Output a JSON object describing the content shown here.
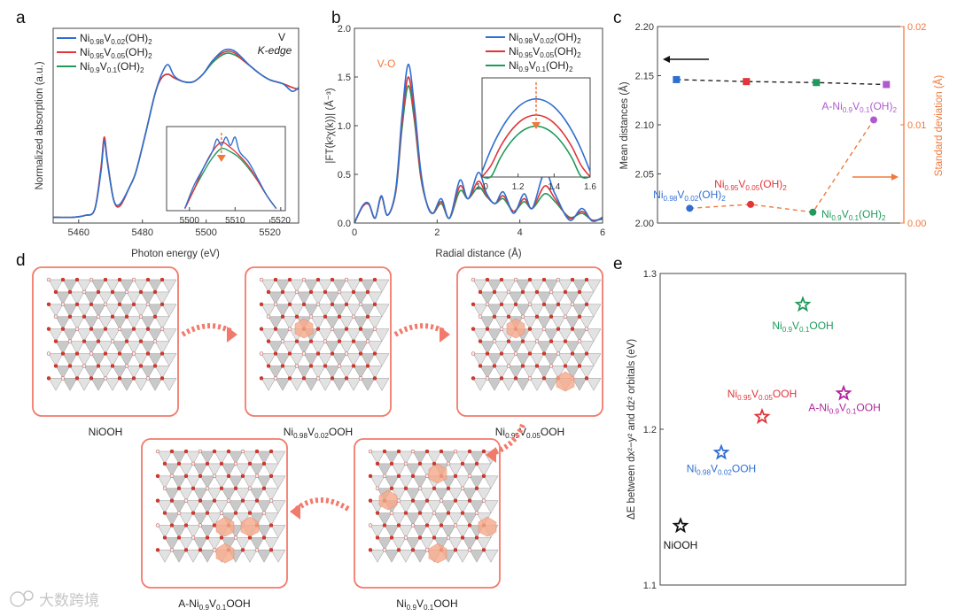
{
  "panel_labels": {
    "a": "a",
    "b": "b",
    "c": "c",
    "d": "d",
    "e": "e"
  },
  "colors": {
    "blue": "#2f6fd0",
    "red": "#e0353a",
    "green": "#1e9a5c",
    "purple": "#b05ad0",
    "magenta": "#b0259e",
    "orange": "#f0793a",
    "black": "#111111",
    "salmon": "#f27a6b"
  },
  "chart_data": [
    {
      "type": "line",
      "panel": "a",
      "xlabel": "Photon energy (eV)",
      "ylabel": "Normalized absorption (a.u.)",
      "xlim": [
        5452,
        5529
      ],
      "ylim": [
        -0.02,
        1.0
      ],
      "xticks": [
        5460,
        5480,
        5500,
        5520
      ],
      "annotation": {
        "line1": "V",
        "line2": "K-edge"
      },
      "series": [
        {
          "name": "Ni0.98V0.02(OH)2",
          "color": "#2f6fd0",
          "points": [
            [
              5452,
              0.01
            ],
            [
              5458,
              0.01
            ],
            [
              5462,
              0.02
            ],
            [
              5465,
              0.05
            ],
            [
              5467,
              0.25
            ],
            [
              5468,
              0.41
            ],
            [
              5469,
              0.3
            ],
            [
              5471,
              0.1
            ],
            [
              5473,
              0.08
            ],
            [
              5476,
              0.17
            ],
            [
              5478,
              0.25
            ],
            [
              5481,
              0.45
            ],
            [
              5484,
              0.66
            ],
            [
              5486,
              0.76
            ],
            [
              5488,
              0.81
            ],
            [
              5490,
              0.75
            ],
            [
              5493,
              0.72
            ],
            [
              5496,
              0.72
            ],
            [
              5499,
              0.76
            ],
            [
              5502,
              0.83
            ],
            [
              5505,
              0.88
            ],
            [
              5507,
              0.89
            ],
            [
              5509,
              0.88
            ],
            [
              5511,
              0.85
            ],
            [
              5514,
              0.8
            ],
            [
              5517,
              0.76
            ],
            [
              5520,
              0.73
            ],
            [
              5524,
              0.71
            ],
            [
              5527,
              0.67
            ],
            [
              5529,
              0.69
            ]
          ]
        },
        {
          "name": "Ni0.95V0.05(OH)2",
          "color": "#e0353a",
          "points": [
            [
              5452,
              0.01
            ],
            [
              5458,
              0.01
            ],
            [
              5462,
              0.02
            ],
            [
              5465,
              0.05
            ],
            [
              5467,
              0.27
            ],
            [
              5468,
              0.43
            ],
            [
              5469,
              0.31
            ],
            [
              5471,
              0.1
            ],
            [
              5473,
              0.07
            ],
            [
              5476,
              0.17
            ],
            [
              5478,
              0.25
            ],
            [
              5481,
              0.45
            ],
            [
              5484,
              0.66
            ],
            [
              5486,
              0.74
            ],
            [
              5488,
              0.76
            ],
            [
              5490,
              0.74
            ],
            [
              5493,
              0.72
            ],
            [
              5496,
              0.72
            ],
            [
              5499,
              0.76
            ],
            [
              5502,
              0.83
            ],
            [
              5505,
              0.87
            ],
            [
              5507,
              0.88
            ],
            [
              5509,
              0.87
            ],
            [
              5511,
              0.84
            ],
            [
              5514,
              0.8
            ],
            [
              5517,
              0.76
            ],
            [
              5520,
              0.73
            ],
            [
              5524,
              0.71
            ],
            [
              5527,
              0.69
            ],
            [
              5529,
              0.68
            ]
          ]
        },
        {
          "name": "Ni0.9V0.1(OH)2",
          "color": "#1e9a5c",
          "points": [
            [
              5452,
              0.01
            ],
            [
              5458,
              0.01
            ],
            [
              5462,
              0.02
            ],
            [
              5465,
              0.05
            ],
            [
              5467,
              0.26
            ],
            [
              5468,
              0.42
            ],
            [
              5469,
              0.3
            ],
            [
              5471,
              0.1
            ],
            [
              5473,
              0.08
            ],
            [
              5476,
              0.17
            ],
            [
              5478,
              0.25
            ],
            [
              5481,
              0.45
            ],
            [
              5484,
              0.66
            ],
            [
              5486,
              0.74
            ],
            [
              5488,
              0.76
            ],
            [
              5490,
              0.74
            ],
            [
              5493,
              0.72
            ],
            [
              5496,
              0.72
            ],
            [
              5499,
              0.76
            ],
            [
              5502,
              0.82
            ],
            [
              5505,
              0.86
            ],
            [
              5507,
              0.87
            ],
            [
              5509,
              0.86
            ],
            [
              5511,
              0.84
            ],
            [
              5514,
              0.8
            ],
            [
              5517,
              0.76
            ],
            [
              5520,
              0.73
            ],
            [
              5524,
              0.71
            ],
            [
              5527,
              0.69
            ],
            [
              5529,
              0.68
            ]
          ]
        }
      ],
      "inset": {
        "xlim": [
          5495,
          5521
        ],
        "ylim": [
          0.54,
          0.94
        ],
        "xticks": [
          5500,
          5510,
          5520
        ],
        "marker_x": 5507,
        "series": [
          {
            "name": "Ni0.98V0.02(OH)2",
            "color": "#2f6fd0",
            "points": [
              [
                5499,
                0.55
              ],
              [
                5501,
                0.66
              ],
              [
                5503,
                0.74
              ],
              [
                5505,
                0.82
              ],
              [
                5506,
                0.88
              ],
              [
                5507,
                0.85
              ],
              [
                5508,
                0.89
              ],
              [
                5509,
                0.85
              ],
              [
                5510,
                0.89
              ],
              [
                5511,
                0.82
              ],
              [
                5513,
                0.77
              ],
              [
                5515,
                0.69
              ],
              [
                5517,
                0.61
              ],
              [
                5519,
                0.55
              ]
            ]
          },
          {
            "name": "Ni0.95V0.05(OH)2",
            "color": "#e0353a",
            "points": [
              [
                5499,
                0.55
              ],
              [
                5501,
                0.64
              ],
              [
                5503,
                0.74
              ],
              [
                5505,
                0.82
              ],
              [
                5507,
                0.865
              ],
              [
                5509,
                0.84
              ],
              [
                5511,
                0.8
              ],
              [
                5513,
                0.75
              ],
              [
                5515,
                0.68
              ],
              [
                5517,
                0.61
              ],
              [
                5519,
                0.55
              ]
            ]
          },
          {
            "name": "Ni0.9V0.1(OH)2",
            "color": "#1e9a5c",
            "points": [
              [
                5499,
                0.55
              ],
              [
                5501,
                0.64
              ],
              [
                5503,
                0.72
              ],
              [
                5505,
                0.79
              ],
              [
                5507,
                0.835
              ],
              [
                5509,
                0.82
              ],
              [
                5511,
                0.79
              ],
              [
                5513,
                0.74
              ],
              [
                5515,
                0.68
              ],
              [
                5517,
                0.61
              ],
              [
                5519,
                0.55
              ]
            ]
          }
        ]
      }
    },
    {
      "type": "line",
      "panel": "b",
      "xlabel": "Radial distance (Å)",
      "ylabel": "|FT(k²χ(k))| (Å⁻³)",
      "xlim": [
        0,
        6
      ],
      "ylim": [
        0,
        2.0
      ],
      "xticks": [
        0,
        2,
        4,
        6
      ],
      "yticks": [
        0.0,
        0.5,
        1.0,
        1.5,
        2.0
      ],
      "annotation": "V-O",
      "series": [
        {
          "name": "Ni0.98V0.02(OH)2",
          "color": "#2f6fd0",
          "points": [
            [
              0,
              0.0
            ],
            [
              0.2,
              0.18
            ],
            [
              0.35,
              0.2
            ],
            [
              0.5,
              0.05
            ],
            [
              0.65,
              0.28
            ],
            [
              0.8,
              0.08
            ],
            [
              1.0,
              0.35
            ],
            [
              1.15,
              1.1
            ],
            [
              1.3,
              1.63
            ],
            [
              1.45,
              1.2
            ],
            [
              1.6,
              0.55
            ],
            [
              1.75,
              0.2
            ],
            [
              1.9,
              0.1
            ],
            [
              2.1,
              0.25
            ],
            [
              2.3,
              0.05
            ],
            [
              2.55,
              0.44
            ],
            [
              2.75,
              0.25
            ],
            [
              3.0,
              0.52
            ],
            [
              3.2,
              0.3
            ],
            [
              3.4,
              0.2
            ],
            [
              3.6,
              0.32
            ],
            [
              3.85,
              0.1
            ],
            [
              4.1,
              0.3
            ],
            [
              4.3,
              0.15
            ],
            [
              4.6,
              0.52
            ],
            [
              4.85,
              0.3
            ],
            [
              5.2,
              0.03
            ],
            [
              5.5,
              0.15
            ],
            [
              5.75,
              0.02
            ],
            [
              6,
              0.06
            ]
          ]
        },
        {
          "name": "Ni0.95V0.05(OH)2",
          "color": "#e0353a",
          "points": [
            [
              0,
              0.0
            ],
            [
              0.2,
              0.17
            ],
            [
              0.35,
              0.19
            ],
            [
              0.5,
              0.05
            ],
            [
              0.65,
              0.27
            ],
            [
              0.8,
              0.08
            ],
            [
              1.0,
              0.33
            ],
            [
              1.15,
              1.02
            ],
            [
              1.3,
              1.5
            ],
            [
              1.45,
              1.1
            ],
            [
              1.6,
              0.5
            ],
            [
              1.75,
              0.2
            ],
            [
              1.9,
              0.1
            ],
            [
              2.1,
              0.22
            ],
            [
              2.3,
              0.05
            ],
            [
              2.55,
              0.38
            ],
            [
              2.75,
              0.25
            ],
            [
              3.0,
              0.43
            ],
            [
              3.2,
              0.28
            ],
            [
              3.4,
              0.2
            ],
            [
              3.6,
              0.28
            ],
            [
              3.85,
              0.12
            ],
            [
              4.1,
              0.25
            ],
            [
              4.3,
              0.15
            ],
            [
              4.6,
              0.38
            ],
            [
              4.85,
              0.25
            ],
            [
              5.2,
              0.05
            ],
            [
              5.5,
              0.12
            ],
            [
              5.75,
              0.03
            ],
            [
              6,
              0.05
            ]
          ]
        },
        {
          "name": "Ni0.9V0.1(OH)2",
          "color": "#1e9a5c",
          "points": [
            [
              0,
              0.0
            ],
            [
              0.2,
              0.17
            ],
            [
              0.35,
              0.19
            ],
            [
              0.5,
              0.05
            ],
            [
              0.65,
              0.27
            ],
            [
              0.8,
              0.08
            ],
            [
              1.0,
              0.32
            ],
            [
              1.15,
              0.97
            ],
            [
              1.3,
              1.41
            ],
            [
              1.45,
              1.05
            ],
            [
              1.6,
              0.48
            ],
            [
              1.75,
              0.2
            ],
            [
              1.9,
              0.1
            ],
            [
              2.1,
              0.2
            ],
            [
              2.3,
              0.05
            ],
            [
              2.55,
              0.33
            ],
            [
              2.75,
              0.25
            ],
            [
              3.0,
              0.37
            ],
            [
              3.2,
              0.27
            ],
            [
              3.4,
              0.2
            ],
            [
              3.6,
              0.25
            ],
            [
              3.85,
              0.12
            ],
            [
              4.1,
              0.22
            ],
            [
              4.3,
              0.15
            ],
            [
              4.6,
              0.3
            ],
            [
              4.85,
              0.22
            ],
            [
              5.2,
              0.06
            ],
            [
              5.5,
              0.1
            ],
            [
              5.75,
              0.03
            ],
            [
              6,
              0.04
            ]
          ]
        }
      ],
      "inset": {
        "xlim": [
          1.0,
          1.6
        ],
        "xticks": [
          "1.0",
          "1.2",
          "1.4",
          "1.6"
        ],
        "peak_x": 1.3,
        "peaks": [
          1.63,
          1.5,
          1.41
        ]
      }
    },
    {
      "type": "scatter",
      "panel": "c",
      "ylabel_left": "Mean distances (Å)",
      "ylabel_right": "Standard deviation (Å)",
      "ylim_left": [
        2.0,
        2.2
      ],
      "ylim_right": [
        0,
        0.02
      ],
      "yticks_left": [
        "2.00",
        "2.05",
        "2.10",
        "2.15",
        "2.20"
      ],
      "yticks_right": [
        "0.00",
        "0.01",
        "0.02"
      ],
      "categories": [
        "Ni0.98V0.02(OH)2",
        "Ni0.95V0.05(OH)2",
        "Ni0.9V0.1(OH)2",
        "A-Ni0.9V0.1(OH)2"
      ],
      "category_colors": [
        "#2f6fd0",
        "#e0353a",
        "#1e9a5c",
        "#b05ad0"
      ],
      "mean_distance": [
        2.146,
        2.144,
        2.143,
        2.141
      ],
      "standard_deviation": [
        0.0015,
        0.0019,
        0.0011,
        0.0105
      ]
    },
    {
      "type": "scatter",
      "panel": "e",
      "ylabel": "ΔE between dx²−y² and dz² orbitals (eV)",
      "ylim": [
        1.1,
        1.3
      ],
      "yticks": [
        "1.1",
        "1.2",
        "1.3"
      ],
      "points": [
        {
          "label": "NiOOH",
          "value": 1.138,
          "color": "#111111"
        },
        {
          "label": "Ni0.98V0.02OOH",
          "value": 1.185,
          "color": "#2f6fd0"
        },
        {
          "label": "Ni0.95V0.05OOH",
          "value": 1.208,
          "color": "#e0353a"
        },
        {
          "label": "Ni0.9V0.1OOH",
          "value": 1.28,
          "color": "#1e9a5c"
        },
        {
          "label": "A-Ni0.9V0.1OOH",
          "value": 1.223,
          "color": "#b0259e"
        }
      ]
    }
  ],
  "diagram_d": {
    "structures": [
      "NiOOH",
      "Ni0.98V0.02OOH",
      "Ni0.95V0.05OOH",
      "Ni0.9V0.1OOH",
      "A-Ni0.9V0.1OOH"
    ]
  },
  "watermark": "大数跨境"
}
